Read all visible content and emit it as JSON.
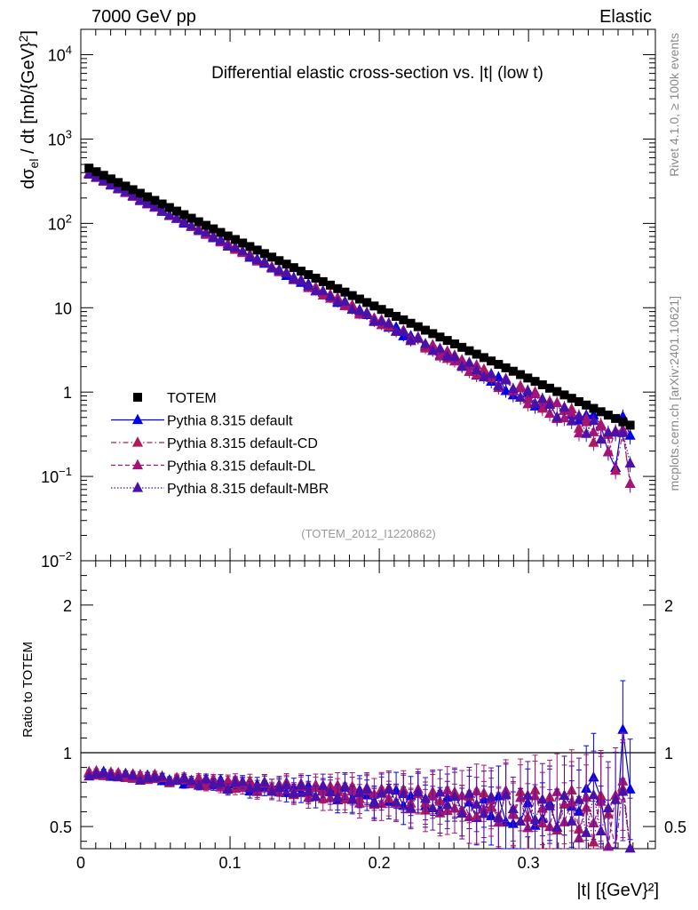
{
  "header": {
    "left": "7000 GeV pp",
    "right": "Elastic"
  },
  "side_labels": {
    "rivet": "Rivet 4.1.0, ≥ 100k events",
    "mcplots": "mcplots.cern.ch [arXiv:2401.10621]"
  },
  "chart_data": {
    "type": "scatter",
    "title": "Differential elastic cross-section vs. |t| (low t)",
    "watermark": "(TOTEM_2012_I1220862)",
    "xlabel": "|t| [{GeV}²]",
    "ylabel": "dσel / dt [mb/{GeV}²]",
    "ratio_ylabel": "Ratio to TOTEM",
    "xlim": [
      0,
      0.385
    ],
    "ylim": [
      0.01,
      20000
    ],
    "yscale": "log",
    "ratio_ylim": [
      0.35,
      2.3
    ],
    "x_ticks": [
      "0",
      "0.1",
      "0.2",
      "0.3"
    ],
    "y_ticks": [
      "10^-2",
      "10^-1",
      "1",
      "10",
      "10^2",
      "10^3",
      "10^4"
    ],
    "ratio_ticks_left": [
      "0.5",
      "1",
      "2"
    ],
    "ratio_ticks_right": [
      "0.5",
      "1",
      "2"
    ],
    "legend_position": "lower-left",
    "legend": [
      {
        "name": "TOTEM",
        "color": "#000000",
        "marker": "square",
        "line": "none"
      },
      {
        "name": "Pythia 8.315 default",
        "color": "#0000ee",
        "marker": "triangle",
        "line": "solid"
      },
      {
        "name": "Pythia 8.315 default-CD",
        "color": "#b0185a",
        "marker": "triangle",
        "line": "dashdot"
      },
      {
        "name": "Pythia 8.315 default-DL",
        "color": "#a31478",
        "marker": "triangle",
        "line": "dashed"
      },
      {
        "name": "Pythia 8.315 default-MBR",
        "color": "#4a11a8",
        "marker": "triangle",
        "line": "dotted"
      }
    ],
    "data": {
      "t_start": 0.0055,
      "t_step": 0.0049,
      "n_points": 75,
      "A": 505,
      "b": 20.1,
      "curv": 2.0,
      "mc_ratio_start": 0.86,
      "mc_ratio_slope": -0.85
    },
    "series_ratio_jitter": [
      [
        0.0,
        0.01,
        0.02,
        -0.01,
        0.0,
        0.01,
        -0.01,
        0.0,
        0.02,
        0.01,
        -0.01,
        0.0,
        0.01,
        -0.02,
        0.0,
        0.01,
        0.02,
        -0.01,
        0.03,
        -0.02,
        0.01,
        0.02,
        -0.03,
        0.02,
        0.0,
        0.01,
        0.03,
        -0.02,
        0.02,
        -0.01,
        0.04,
        -0.03,
        0.02,
        0.03,
        -0.04,
        0.05,
        -0.02,
        0.04,
        0.01,
        -0.03,
        0.05,
        -0.02,
        0.06,
        -0.04,
        0.03,
        0.05,
        -0.03,
        0.06,
        -0.05,
        0.04,
        0.07,
        -0.04,
        0.02,
        -0.08,
        0.05,
        -0.06,
        0.08,
        -0.09,
        -0.1,
        -0.08,
        0.05,
        -0.1,
        -0.05,
        0.06,
        -0.1,
        0.12,
        0.05,
        0.02,
        0.18,
        0.26,
        0.12,
        -0.2,
        -0.3,
        0.6,
        0.2
      ],
      [
        0.01,
        -0.01,
        0.0,
        0.02,
        0.01,
        -0.01,
        0.02,
        0.0,
        -0.01,
        0.03,
        0.01,
        -0.02,
        0.02,
        0.01,
        -0.01,
        0.03,
        -0.02,
        0.02,
        0.0,
        0.03,
        -0.02,
        0.01,
        0.04,
        -0.02,
        0.03,
        -0.01,
        0.02,
        0.04,
        -0.03,
        0.05,
        -0.01,
        0.03,
        -0.04,
        0.05,
        0.02,
        -0.03,
        0.06,
        -0.02,
        0.04,
        -0.05,
        0.06,
        0.0,
        -0.03,
        0.07,
        -0.02,
        0.05,
        -0.06,
        0.07,
        0.01,
        -0.05,
        0.08,
        -0.04,
        0.06,
        -0.07,
        0.09,
        0.0,
        -0.06,
        0.1,
        -0.03,
        0.12,
        -0.05,
        0.14,
        -0.08,
        0.1,
        -0.12,
        0.06,
        0.16,
        -0.1,
        0.05,
        -0.18,
        0.14,
        0.02,
        -0.32,
        0.2,
        -0.35
      ],
      [
        0.0,
        0.02,
        -0.01,
        0.01,
        0.02,
        0.0,
        -0.01,
        0.02,
        0.01,
        0.0,
        0.02,
        -0.01,
        0.01,
        0.03,
        -0.01,
        0.02,
        0.0,
        0.03,
        -0.02,
        0.02,
        0.04,
        -0.01,
        0.02,
        -0.03,
        0.04,
        0.01,
        -0.02,
        0.05,
        -0.01,
        0.03,
        -0.04,
        0.05,
        0.01,
        -0.03,
        0.06,
        -0.01,
        0.03,
        -0.05,
        0.06,
        0.02,
        -0.04,
        0.07,
        -0.02,
        0.05,
        -0.06,
        0.08,
        -0.01,
        0.04,
        -0.07,
        0.09,
        -0.03,
        0.06,
        -0.08,
        0.1,
        -0.02,
        0.05,
        -0.1,
        0.12,
        -0.04,
        0.08,
        -0.12,
        0.1,
        0.02,
        -0.1,
        0.14,
        -0.06,
        0.08,
        -0.16,
        0.12,
        -0.05,
        0.1,
        -0.2,
        0.15,
        0.25,
        -0.35
      ],
      [
        -0.02,
        0.0,
        0.01,
        0.0,
        -0.01,
        0.02,
        0.01,
        -0.02,
        0.0,
        0.01,
        0.02,
        -0.01,
        0.0,
        0.02,
        0.01,
        -0.02,
        0.03,
        0.0,
        0.01,
        -0.03,
        0.02,
        0.03,
        -0.01,
        0.0,
        0.04,
        -0.02,
        0.01,
        0.03,
        -0.02,
        0.04,
        0.0,
        -0.03,
        0.05,
        0.01,
        -0.02,
        0.06,
        -0.03,
        0.02,
        0.05,
        -0.04,
        0.03,
        0.06,
        -0.02,
        0.04,
        -0.05,
        0.06,
        0.02,
        -0.04,
        0.07,
        -0.01,
        0.05,
        -0.06,
        0.08,
        0.01,
        -0.05,
        0.07,
        -0.07,
        0.09,
        0.0,
        -0.08,
        0.1,
        -0.06,
        0.08,
        0.04,
        -0.1,
        0.12,
        -0.05,
        0.1,
        -0.12,
        0.14,
        -0.1,
        0.06,
        0.12,
        0.18,
        -0.2
      ]
    ]
  }
}
